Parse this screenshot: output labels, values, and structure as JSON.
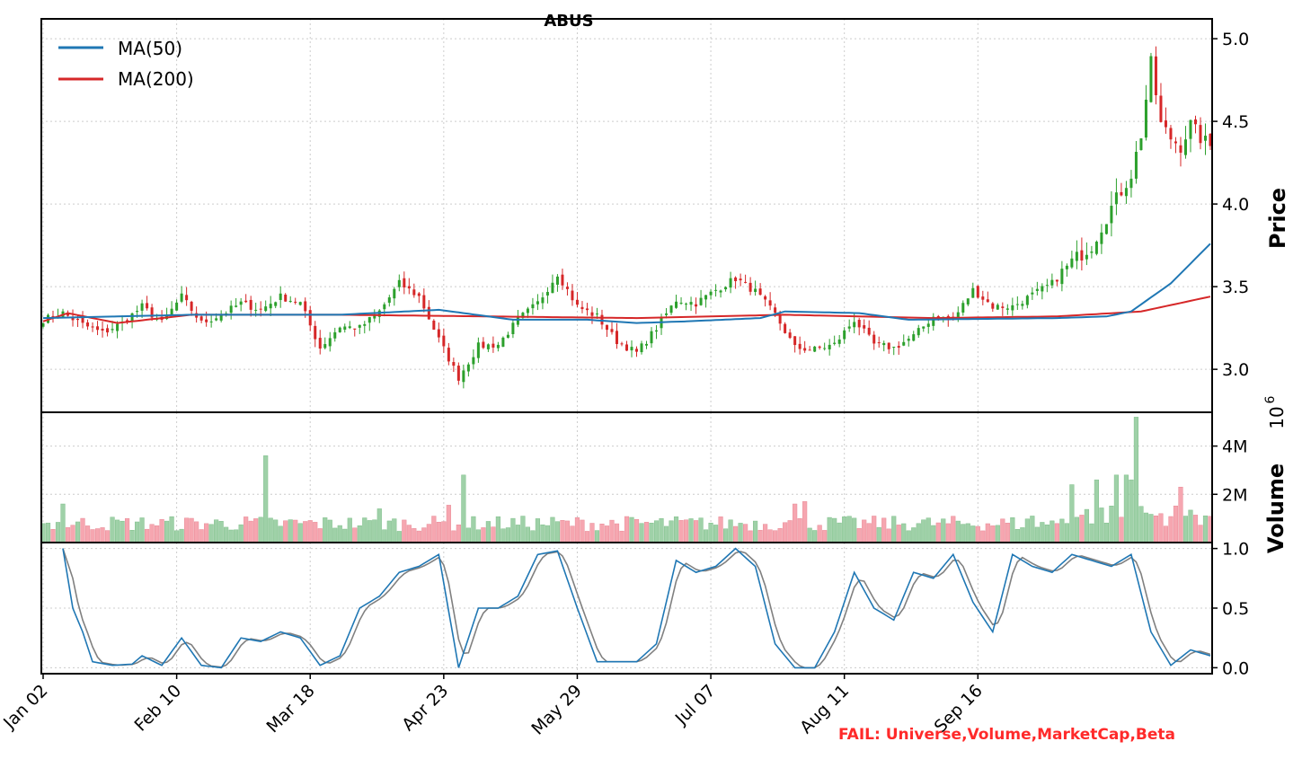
{
  "chart_data": {
    "type": "candlestick",
    "title": "ABUS",
    "x_ticks": [
      "Jan 02",
      "Feb 10",
      "Mar 18",
      "Apr 23",
      "May 29",
      "Jul 07",
      "Aug 11",
      "Sep 16"
    ],
    "price_panel": {
      "ylabel": "Price",
      "ylim": [
        2.74,
        5.12
      ],
      "yticks": [
        "3.0",
        "3.5",
        "4.0",
        "4.5",
        "5.0"
      ],
      "legend": [
        {
          "name": "MA(50)",
          "color": "#1f77b4"
        },
        {
          "name": "MA(200)",
          "color": "#d62728"
        }
      ],
      "legend_position": "upper-left",
      "anchors": [
        [
          0,
          3.3
        ],
        [
          4,
          3.34
        ],
        [
          8,
          3.27
        ],
        [
          12,
          3.22
        ],
        [
          16,
          3.28
        ],
        [
          20,
          3.38
        ],
        [
          24,
          3.28
        ],
        [
          28,
          3.44
        ],
        [
          32,
          3.28
        ],
        [
          36,
          3.33
        ],
        [
          40,
          3.4
        ],
        [
          44,
          3.36
        ],
        [
          48,
          3.44
        ],
        [
          52,
          3.4
        ],
        [
          56,
          3.13
        ],
        [
          60,
          3.26
        ],
        [
          64,
          3.25
        ],
        [
          68,
          3.35
        ],
        [
          72,
          3.52
        ],
        [
          76,
          3.44
        ],
        [
          80,
          3.18
        ],
        [
          84,
          2.95
        ],
        [
          88,
          3.14
        ],
        [
          92,
          3.15
        ],
        [
          96,
          3.3
        ],
        [
          100,
          3.4
        ],
        [
          104,
          3.58
        ],
        [
          108,
          3.38
        ],
        [
          112,
          3.32
        ],
        [
          116,
          3.17
        ],
        [
          120,
          3.1
        ],
        [
          124,
          3.25
        ],
        [
          128,
          3.42
        ],
        [
          132,
          3.4
        ],
        [
          136,
          3.48
        ],
        [
          140,
          3.55
        ],
        [
          144,
          3.47
        ],
        [
          148,
          3.33
        ],
        [
          152,
          3.13
        ],
        [
          156,
          3.12
        ],
        [
          160,
          3.15
        ],
        [
          164,
          3.3
        ],
        [
          168,
          3.15
        ],
        [
          172,
          3.13
        ],
        [
          176,
          3.2
        ],
        [
          180,
          3.32
        ],
        [
          184,
          3.3
        ],
        [
          188,
          3.48
        ],
        [
          192,
          3.38
        ],
        [
          196,
          3.38
        ],
        [
          200,
          3.45
        ],
        [
          204,
          3.52
        ],
        [
          208,
          3.65
        ],
        [
          212,
          3.75
        ],
        [
          216,
          3.98
        ],
        [
          220,
          4.18
        ],
        [
          222,
          4.42
        ],
        [
          224,
          4.85
        ],
        [
          226,
          4.48
        ],
        [
          228,
          4.4
        ],
        [
          230,
          4.35
        ],
        [
          232,
          4.48
        ],
        [
          234,
          4.4
        ],
        [
          236,
          4.35
        ]
      ],
      "ma50": [
        [
          0,
          3.31
        ],
        [
          30,
          3.33
        ],
        [
          60,
          3.33
        ],
        [
          80,
          3.36
        ],
        [
          95,
          3.3
        ],
        [
          110,
          3.3
        ],
        [
          120,
          3.28
        ],
        [
          130,
          3.29
        ],
        [
          145,
          3.31
        ],
        [
          150,
          3.35
        ],
        [
          165,
          3.34
        ],
        [
          175,
          3.3
        ],
        [
          205,
          3.31
        ],
        [
          215,
          3.32
        ],
        [
          220,
          3.35
        ],
        [
          228,
          3.52
        ],
        [
          236,
          3.76
        ]
      ],
      "ma200": [
        [
          0,
          3.29
        ],
        [
          5,
          3.34
        ],
        [
          15,
          3.28
        ],
        [
          30,
          3.33
        ],
        [
          60,
          3.33
        ],
        [
          90,
          3.32
        ],
        [
          120,
          3.31
        ],
        [
          150,
          3.33
        ],
        [
          180,
          3.31
        ],
        [
          205,
          3.32
        ],
        [
          222,
          3.35
        ],
        [
          236,
          3.44
        ]
      ]
    },
    "volume_panel": {
      "ylabel": "Volume",
      "scale_label": "10",
      "scale_exponent": "6",
      "ylim": [
        0,
        5.4
      ],
      "yticks": [
        "2M",
        "4M"
      ],
      "base_millions": 0.85,
      "spikes_millions": [
        [
          4,
          1.6
        ],
        [
          45,
          3.6
        ],
        [
          68,
          1.4
        ],
        [
          82,
          1.55
        ],
        [
          85,
          2.8
        ],
        [
          152,
          1.6
        ],
        [
          154,
          1.7
        ],
        [
          200,
          1.1
        ],
        [
          208,
          2.4
        ],
        [
          213,
          2.6
        ],
        [
          217,
          2.8
        ],
        [
          219,
          2.8
        ],
        [
          220,
          2.6
        ],
        [
          221,
          5.2
        ],
        [
          222,
          1.5
        ],
        [
          230,
          2.3
        ]
      ]
    },
    "oscillator_panel": {
      "ylim": [
        -0.05,
        1.05
      ],
      "yticks": [
        "0.0",
        "0.5",
        "1.0"
      ],
      "line_colors": [
        "#1f77b4",
        "#808080"
      ],
      "anchors": [
        [
          4,
          1.0
        ],
        [
          6,
          0.5
        ],
        [
          8,
          0.3
        ],
        [
          10,
          0.05
        ],
        [
          14,
          0.02
        ],
        [
          18,
          0.03
        ],
        [
          20,
          0.1
        ],
        [
          24,
          0.02
        ],
        [
          28,
          0.25
        ],
        [
          32,
          0.02
        ],
        [
          36,
          0.0
        ],
        [
          40,
          0.25
        ],
        [
          44,
          0.22
        ],
        [
          48,
          0.3
        ],
        [
          52,
          0.25
        ],
        [
          56,
          0.02
        ],
        [
          60,
          0.1
        ],
        [
          64,
          0.5
        ],
        [
          68,
          0.6
        ],
        [
          72,
          0.8
        ],
        [
          76,
          0.85
        ],
        [
          80,
          0.95
        ],
        [
          84,
          0.0
        ],
        [
          88,
          0.5
        ],
        [
          92,
          0.5
        ],
        [
          96,
          0.6
        ],
        [
          100,
          0.95
        ],
        [
          104,
          0.98
        ],
        [
          108,
          0.5
        ],
        [
          112,
          0.05
        ],
        [
          116,
          0.05
        ],
        [
          120,
          0.05
        ],
        [
          124,
          0.2
        ],
        [
          128,
          0.9
        ],
        [
          132,
          0.8
        ],
        [
          136,
          0.85
        ],
        [
          140,
          1.0
        ],
        [
          144,
          0.85
        ],
        [
          148,
          0.2
        ],
        [
          152,
          0.0
        ],
        [
          156,
          0.0
        ],
        [
          160,
          0.3
        ],
        [
          164,
          0.8
        ],
        [
          168,
          0.5
        ],
        [
          172,
          0.4
        ],
        [
          176,
          0.8
        ],
        [
          180,
          0.75
        ],
        [
          184,
          0.95
        ],
        [
          188,
          0.55
        ],
        [
          192,
          0.3
        ],
        [
          196,
          0.95
        ],
        [
          200,
          0.85
        ],
        [
          204,
          0.8
        ],
        [
          208,
          0.95
        ],
        [
          212,
          0.9
        ],
        [
          216,
          0.85
        ],
        [
          220,
          0.95
        ],
        [
          224,
          0.3
        ],
        [
          228,
          0.02
        ],
        [
          232,
          0.15
        ],
        [
          236,
          0.1
        ]
      ]
    }
  },
  "footer": {
    "fail_text": "FAIL: Universe,Volume,MarketCap,Beta"
  },
  "colors": {
    "up": "#2ca02c",
    "down": "#d62728",
    "volume_up": "#9fd1a8",
    "volume_down": "#f6a6b0"
  }
}
